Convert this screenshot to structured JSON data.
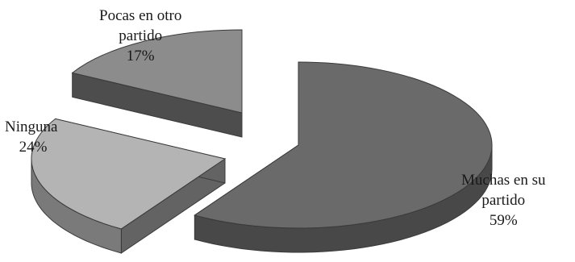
{
  "chart_data": {
    "type": "pie",
    "style": "3d-exploded",
    "slices": [
      {
        "label": "Muchas en su partido",
        "value": 59,
        "percent_label": "59%",
        "label_lines": [
          "Muchas en su",
          "partido"
        ],
        "color": "#6a6a6a"
      },
      {
        "label": "Ninguna",
        "value": 24,
        "percent_label": "24%",
        "label_lines": [
          "Ninguna"
        ],
        "color": "#b4b4b4"
      },
      {
        "label": "Pocas en otro partido",
        "value": 17,
        "percent_label": "17%",
        "label_lines": [
          "Pocas en otro",
          "partido"
        ],
        "color": "#8c8c8c"
      }
    ]
  }
}
